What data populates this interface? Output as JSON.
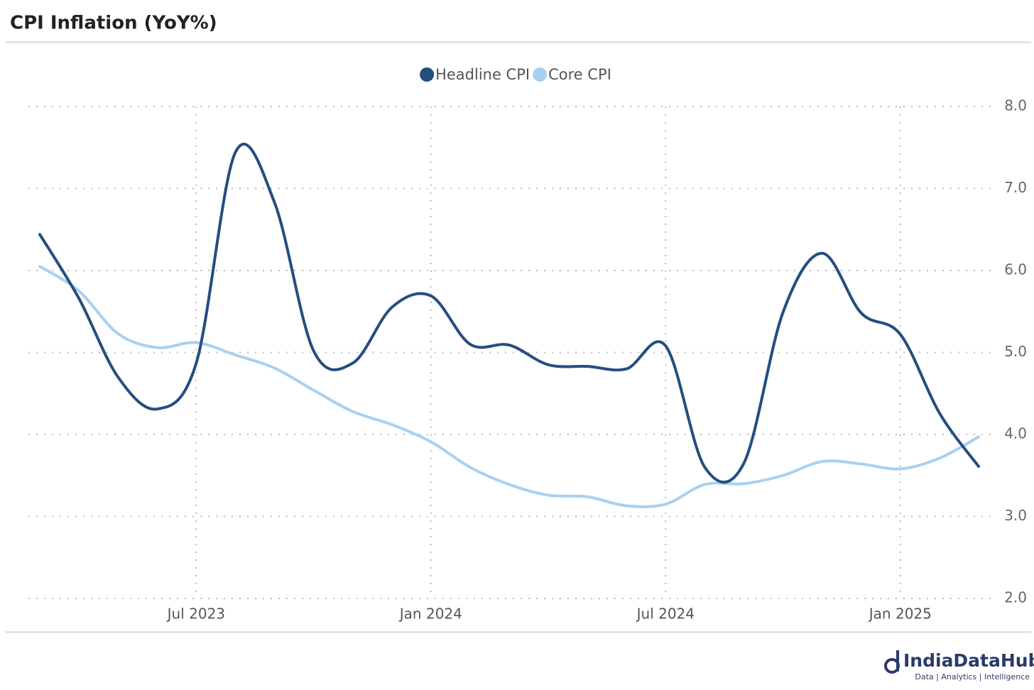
{
  "chart_data": {
    "type": "line",
    "title": "CPI Inflation (YoY%)",
    "x": [
      "2023-02",
      "2023-03",
      "2023-04",
      "2023-05",
      "2023-06",
      "2023-07",
      "2023-08",
      "2023-09",
      "2023-10",
      "2023-11",
      "2023-12",
      "2024-01",
      "2024-02",
      "2024-03",
      "2024-04",
      "2024-05",
      "2024-06",
      "2024-07",
      "2024-08",
      "2024-09",
      "2024-10",
      "2024-11",
      "2024-12",
      "2025-01",
      "2025-02"
    ],
    "series": [
      {
        "name": "Headline CPI",
        "color": "#264d80",
        "values": [
          6.44,
          5.66,
          4.7,
          4.31,
          4.87,
          7.44,
          6.83,
          5.02,
          4.87,
          5.55,
          5.69,
          5.1,
          5.09,
          4.85,
          4.83,
          4.8,
          5.08,
          3.6,
          3.65,
          5.49,
          6.21,
          5.48,
          5.22,
          4.26,
          3.61
        ]
      },
      {
        "name": "Core CPI",
        "color": "#a9d0f0",
        "values": [
          6.05,
          5.75,
          5.23,
          5.06,
          5.12,
          4.97,
          4.81,
          4.54,
          4.28,
          4.12,
          3.91,
          3.6,
          3.39,
          3.26,
          3.24,
          3.13,
          3.15,
          3.39,
          3.4,
          3.5,
          3.67,
          3.64,
          3.58,
          3.71,
          3.97
        ]
      }
    ],
    "xlim": [
      "2023-02",
      "2025-02"
    ],
    "xticks": [
      {
        "value": "2023-07",
        "label": "Jul 2023"
      },
      {
        "value": "2024-01",
        "label": "Jan 2024"
      },
      {
        "value": "2024-07",
        "label": "Jul 2024"
      },
      {
        "value": "2025-01",
        "label": "Jan 2025"
      }
    ],
    "ylim": [
      2,
      8
    ],
    "yticks": [
      {
        "value": 2,
        "label": "2.0"
      },
      {
        "value": 3,
        "label": "3.0"
      },
      {
        "value": 4,
        "label": "4.0"
      },
      {
        "value": 5,
        "label": "5.0"
      },
      {
        "value": 6,
        "label": "6.0"
      },
      {
        "value": 7,
        "label": "7.0"
      },
      {
        "value": 8,
        "label": "8.0"
      }
    ],
    "grid": true,
    "legend": "top"
  },
  "branding": {
    "name": "IndiaDataHub",
    "tagline": "Data | Analytics | Intelligence"
  }
}
